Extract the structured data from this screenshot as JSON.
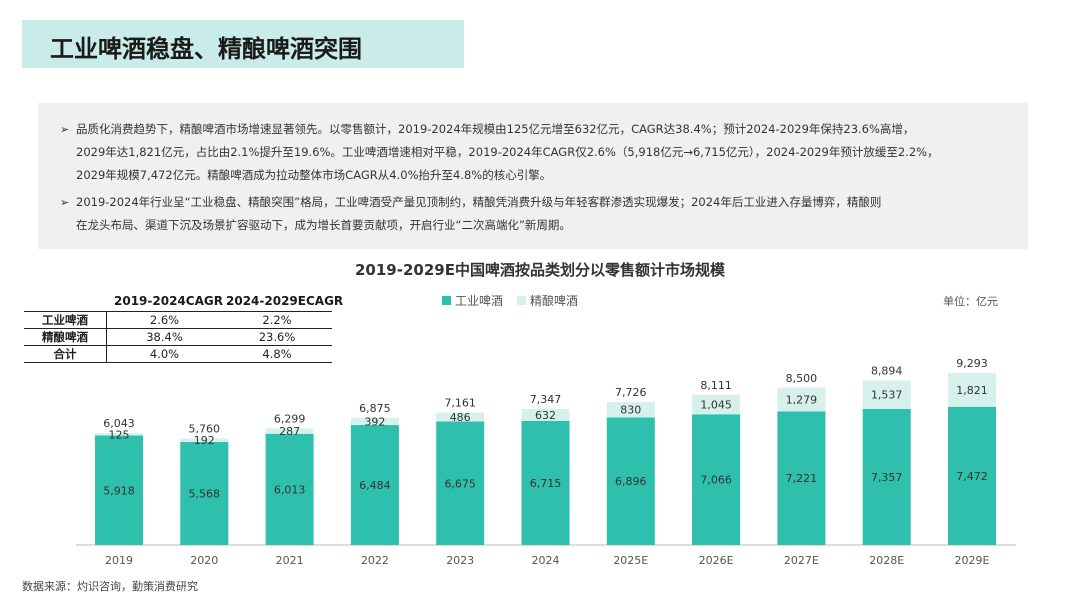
{
  "header": {
    "title": "工业啤酒稳盘、精酿啤酒突围"
  },
  "summary": {
    "bullets": [
      {
        "lines": [
          "品质化消费趋势下，精酿啤酒市场增速显著领先。以零售额计，2019-2024年规模由125亿元增至632亿元，CAGR达38.4%；预计2024-2029年保持23.6%高增，",
          "2029年达1,821亿元，占比由2.1%提升至19.6%。工业啤酒增速相对平稳，2019-2024年CAGR仅2.6%（5,918亿元→6,715亿元），2024-2029年预计放缓至2.2%，",
          "2029年规模7,472亿元。精酿啤酒成为拉动整体市场CAGR从4.0%抬升至4.8%的核心引擎。"
        ]
      },
      {
        "lines": [
          "2019-2024年行业呈“工业稳盘、精酿突围”格局，工业啤酒受产量见顶制约，精酿凭消费升级与年轻客群渗透实现爆发；2024年后工业进入存量博弈，精酿则",
          "在龙头布局、渠道下沉及场景扩容驱动下，成为增长首要贡献项，开启行业“二次高端化”新周期。"
        ]
      }
    ]
  },
  "cagr_table": {
    "headers": [
      "2019-2024CAGR",
      "2024-2029ECAGR"
    ],
    "rows": [
      {
        "label": "工业啤酒",
        "v1": "2.6%",
        "v2": "2.2%"
      },
      {
        "label": "精酿啤酒",
        "v1": "38.4%",
        "v2": "23.6%"
      },
      {
        "label": "合计",
        "v1": "4.0%",
        "v2": "4.8%"
      }
    ]
  },
  "unit": "单位：亿元",
  "source": "数据来源：灼识咨询，勤策消费研究",
  "colors": {
    "industrial": "#2ebfad",
    "craft": "#d6f0ec",
    "title_bar": "#c9ecea"
  },
  "chart_data": {
    "type": "bar",
    "stacked": true,
    "title": "2019-2029E中国啤酒按品类划分以零售额计市场规模",
    "categories": [
      "2019",
      "2020",
      "2021",
      "2022",
      "2023",
      "2024",
      "2025E",
      "2026E",
      "2027E",
      "2028E",
      "2029E"
    ],
    "series": [
      {
        "name": "工业啤酒",
        "values": [
          5918,
          5568,
          6013,
          6484,
          6675,
          6715,
          6896,
          7066,
          7221,
          7357,
          7472
        ]
      },
      {
        "name": "精酿啤酒",
        "values": [
          125,
          192,
          287,
          392,
          486,
          632,
          830,
          1045,
          1279,
          1537,
          1821
        ]
      }
    ],
    "totals": [
      6043,
      5760,
      6299,
      6875,
      7161,
      7347,
      7726,
      8111,
      8500,
      8894,
      9293
    ],
    "value_labels": {
      "industrial": [
        "5,918",
        "5,568",
        "6,013",
        "6,484",
        "6,675",
        "6,715",
        "6,896",
        "7,066",
        "7,221",
        "7,357",
        "7,472"
      ],
      "craft": [
        "125",
        "192",
        "287",
        "392",
        "486",
        "632",
        "830",
        "1,045",
        "1,279",
        "1,537",
        "1,821"
      ],
      "totals": [
        "6,043",
        "5,760",
        "6,299",
        "6,875",
        "7,161",
        "7,347",
        "7,726",
        "8,111",
        "8,500",
        "8,894",
        "9,293"
      ]
    },
    "legend_position": "top-center",
    "xlabel": "",
    "ylabel": ""
  }
}
